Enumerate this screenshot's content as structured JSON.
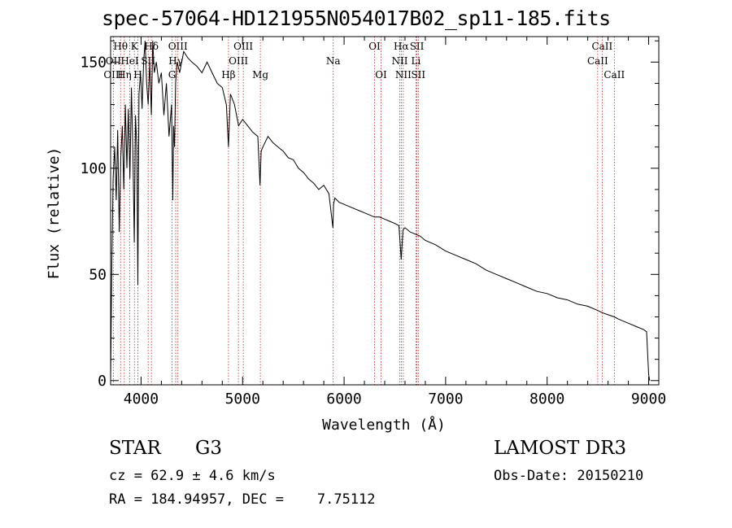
{
  "chart_data": {
    "type": "line",
    "title": "spec-57064-HD121955N054017B02_sp11-185.fits",
    "xlabel": "Wavelength (Å)",
    "ylabel": "Flux (relative)",
    "xlim": [
      3700,
      9100
    ],
    "ylim": [
      -2,
      162
    ],
    "xticks": [
      4000,
      5000,
      6000,
      7000,
      8000,
      9000
    ],
    "xtick_labels": [
      "4000",
      "5000",
      "6000",
      "7000",
      "8000",
      "9000"
    ],
    "yticks": [
      0,
      50,
      100,
      150
    ],
    "ytick_labels": [
      "0",
      "50",
      "100",
      "150"
    ],
    "series": [
      {
        "name": "spectrum",
        "x": [
          3700,
          3712,
          3725,
          3740,
          3755,
          3770,
          3785,
          3800,
          3815,
          3830,
          3845,
          3860,
          3875,
          3890,
          3905,
          3920,
          3933,
          3945,
          3958,
          3968,
          3980,
          3995,
          4010,
          4025,
          4040,
          4055,
          4070,
          4085,
          4101,
          4115,
          4130,
          4150,
          4175,
          4200,
          4225,
          4250,
          4275,
          4300,
          4313,
          4320,
          4330,
          4340,
          4355,
          4380,
          4420,
          4460,
          4500,
          4550,
          4600,
          4650,
          4700,
          4750,
          4800,
          4840,
          4861,
          4880,
          4920,
          4960,
          5000,
          5050,
          5100,
          5150,
          5172,
          5183,
          5200,
          5250,
          5300,
          5350,
          5400,
          5450,
          5500,
          5550,
          5600,
          5650,
          5700,
          5750,
          5800,
          5850,
          5890,
          5896,
          5910,
          5950,
          6000,
          6050,
          6100,
          6150,
          6200,
          6250,
          6300,
          6350,
          6400,
          6450,
          6500,
          6540,
          6563,
          6580,
          6600,
          6650,
          6700,
          6750,
          6800,
          6900,
          7000,
          7100,
          7200,
          7300,
          7400,
          7500,
          7600,
          7700,
          7800,
          7900,
          8000,
          8100,
          8200,
          8300,
          8400,
          8500,
          8542,
          8600,
          8662,
          8700,
          8800,
          8900,
          8950,
          8980,
          9000,
          9010
        ],
        "y": [
          0,
          55,
          95,
          110,
          85,
          118,
          70,
          105,
          120,
          90,
          130,
          100,
          128,
          95,
          138,
          105,
          65,
          125,
          110,
          45,
          135,
          145,
          128,
          150,
          160,
          140,
          130,
          150,
          125,
          160,
          145,
          150,
          140,
          145,
          125,
          140,
          115,
          130,
          85,
          120,
          110,
          140,
          150,
          145,
          155,
          152,
          150,
          148,
          145,
          150,
          145,
          140,
          138,
          130,
          110,
          135,
          130,
          120,
          123,
          120,
          117,
          115,
          92,
          108,
          110,
          115,
          112,
          110,
          108,
          105,
          104,
          100,
          98,
          95,
          93,
          90,
          92,
          88,
          72,
          83,
          86,
          84,
          83,
          82,
          81,
          80,
          79,
          78,
          77,
          77,
          76,
          75,
          74,
          73,
          57,
          71,
          72,
          70,
          69,
          68,
          66,
          64,
          61,
          59,
          57,
          55,
          52,
          50,
          48,
          46,
          44,
          42,
          41,
          39,
          38,
          36,
          35,
          33,
          32,
          31,
          30,
          29,
          27,
          25,
          24,
          23,
          3,
          0
        ]
      }
    ],
    "line_ids": [
      {
        "name": "Hθ",
        "wl": 3798,
        "row": 0
      },
      {
        "name": "K",
        "wl": 3934,
        "row": 0
      },
      {
        "name": "Hδ",
        "wl": 4102,
        "row": 0
      },
      {
        "name": "OIII",
        "wl": 4363,
        "row": 0
      },
      {
        "name": "OIII",
        "wl": 5007,
        "row": 0
      },
      {
        "name": "OI",
        "wl": 6300,
        "row": 0
      },
      {
        "name": "Hα",
        "wl": 6563,
        "row": 0
      },
      {
        "name": "SII",
        "wl": 6717,
        "row": 0
      },
      {
        "name": "CaII",
        "wl": 8542,
        "row": 0
      },
      {
        "name": "OII",
        "wl": 3727,
        "row": 1
      },
      {
        "name": "HeI",
        "wl": 3889,
        "row": 1
      },
      {
        "name": "SII",
        "wl": 4070,
        "row": 1
      },
      {
        "name": "Hγ",
        "wl": 4341,
        "row": 1
      },
      {
        "name": "OIII",
        "wl": 4959,
        "row": 1
      },
      {
        "name": "Na",
        "wl": 5893,
        "row": 1
      },
      {
        "name": "NII",
        "wl": 6548,
        "row": 1
      },
      {
        "name": "Li",
        "wl": 6708,
        "row": 1
      },
      {
        "name": "CaII",
        "wl": 8498,
        "row": 1
      },
      {
        "name": "OIII",
        "wl": 3727,
        "row": 2
      },
      {
        "name": "Hη",
        "wl": 3835,
        "row": 2
      },
      {
        "name": "H",
        "wl": 3968,
        "row": 2
      },
      {
        "name": "G",
        "wl": 4305,
        "row": 2
      },
      {
        "name": "Hβ",
        "wl": 4861,
        "row": 2
      },
      {
        "name": "Mg",
        "wl": 5175,
        "row": 2
      },
      {
        "name": "OI",
        "wl": 6364,
        "row": 2
      },
      {
        "name": "NII",
        "wl": 6583,
        "row": 2
      },
      {
        "name": "SII",
        "wl": 6731,
        "row": 2
      },
      {
        "name": "CaII",
        "wl": 8662,
        "row": 2
      }
    ],
    "line_marker_wavelengths": [
      3727,
      3798,
      3835,
      3889,
      3934,
      3968,
      4070,
      4102,
      4305,
      4341,
      4363,
      4861,
      4959,
      5007,
      5175,
      5893,
      6300,
      6364,
      6548,
      6563,
      6583,
      6708,
      6717,
      6731,
      8498,
      8542,
      8662
    ],
    "colors": {
      "spectrum": "#000000",
      "line_marker": "#cc2222",
      "axes": "#000000"
    }
  },
  "info": {
    "object_type": "STAR",
    "subclass": "G3",
    "survey": "LAMOST DR3",
    "cz": "cz = 62.9 ± 4.6 km/s",
    "obs_date": "Obs-Date: 20150210",
    "coords": "RA = 184.94957, DEC =    7.75112"
  }
}
